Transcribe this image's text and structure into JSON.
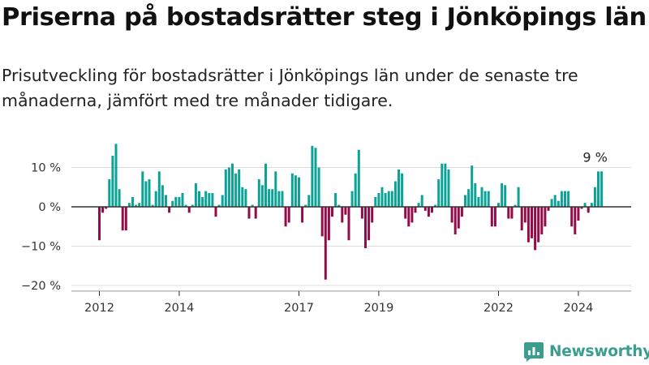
{
  "title": "Priserna på bostadsrätter steg i Jönköpings län",
  "subtitle": "Prisutveckling för bostadsrätter i Jönköpings län under de senaste tre månaderna, jämfört med tre månader tidigare.",
  "brand": {
    "name": "Newsworthy",
    "color": "#3a9d8e",
    "icon": "newsworthy-logo-icon"
  },
  "chart_data": {
    "type": "bar",
    "title": "Priserna på bostadsrätter steg i Jönköpings län",
    "xlabel": "",
    "ylabel": "",
    "ylim": [
      -21,
      17
    ],
    "yticks": [
      10,
      0,
      -10,
      -20
    ],
    "ytick_labels": [
      "10 %",
      "0 %",
      "−10 %",
      "−20 %"
    ],
    "xtick_labels": [
      {
        "label": "2012",
        "index": 0
      },
      {
        "label": "2014",
        "index": 24
      },
      {
        "label": "2017",
        "index": 60
      },
      {
        "label": "2019",
        "index": 84
      },
      {
        "label": "2022",
        "index": 120
      },
      {
        "label": "2024",
        "index": 144
      }
    ],
    "x_start": "2012-01",
    "colors": {
      "positive": "#0ca397",
      "negative": "#930c4a",
      "zero_line": "#333333",
      "grid": "#dddddd"
    },
    "annotation": {
      "text": "9 %",
      "index": 151
    },
    "values": [
      -8.5,
      -1.5,
      -0.5,
      7,
      13,
      16,
      4.5,
      -6,
      -6,
      1,
      2.5,
      0.5,
      1,
      9,
      6.5,
      7,
      0.5,
      4,
      9,
      5.5,
      3,
      -1.5,
      1.5,
      2.5,
      2.5,
      3.5,
      0.5,
      -1.5,
      0.5,
      6,
      4,
      2.5,
      4,
      3.5,
      3.5,
      -2.5,
      0.5,
      3,
      9.5,
      10,
      11,
      8.5,
      9.5,
      5,
      4.5,
      -3,
      0.5,
      -3,
      7,
      5.5,
      11,
      4.5,
      4.5,
      9,
      4,
      4,
      -5,
      -4,
      8.5,
      8,
      7.5,
      -4,
      0.5,
      3,
      15.5,
      15,
      10,
      -7.5,
      -18.5,
      -8.5,
      -2.5,
      3.5,
      0.5,
      -4,
      -2,
      -8.5,
      4,
      8.5,
      14.5,
      -3,
      -10.5,
      -8.5,
      -4,
      2.5,
      3.5,
      5,
      3.5,
      4,
      4,
      6.5,
      9.5,
      8.5,
      -3,
      -5,
      -4,
      -1.5,
      1,
      3,
      -1,
      -2.5,
      -1.5,
      0.5,
      7,
      11,
      11,
      9.5,
      -4,
      -7,
      -5.5,
      -2.5,
      3,
      4.5,
      10.5,
      6,
      2.5,
      5,
      4,
      4,
      -5,
      -5,
      1,
      6,
      5.5,
      -3,
      -3,
      0.5,
      5,
      -6,
      -4,
      -9,
      -8,
      -11,
      -9,
      -7,
      -5,
      -1,
      2,
      3,
      1.5,
      4,
      4,
      4,
      -5,
      -7,
      -3.5,
      -0.5,
      1,
      -1.5,
      1,
      5,
      9,
      9
    ]
  }
}
